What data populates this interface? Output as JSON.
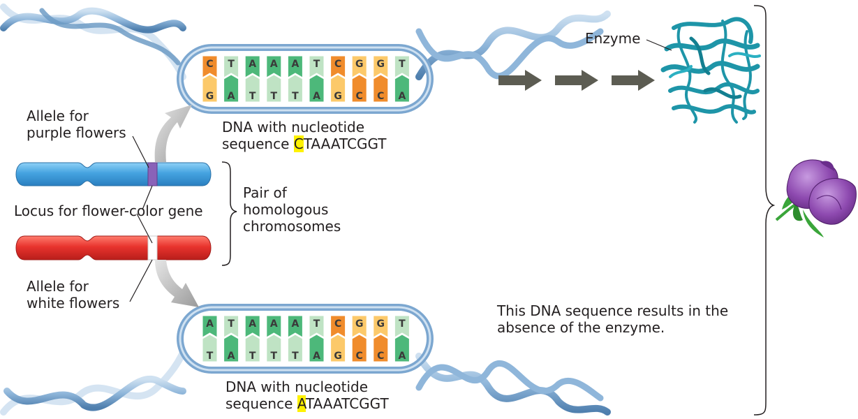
{
  "labels": {
    "enzyme": "Enzyme",
    "top_dna_caption_line1": "DNA with nucleotide",
    "top_dna_caption_line2_prefix": "sequence ",
    "top_sequence_first": "C",
    "top_sequence_rest": "TAAATCGGT",
    "allele_purple_line1": "Allele for",
    "allele_purple_line2": "purple flowers",
    "pair_line1": "Pair of",
    "pair_line2": "homologous",
    "pair_line3": "chromosomes",
    "locus": "Locus for flower-color gene",
    "allele_white_line1": "Allele for",
    "allele_white_line2": "white flowers",
    "result_line1": "This DNA sequence results in the",
    "result_line2": "absence of the enzyme.",
    "bottom_dna_caption_line1": "DNA with nucleotide",
    "bottom_dna_caption_line2_prefix": "sequence ",
    "bottom_sequence_first": "A",
    "bottom_sequence_rest": "TAAATCGGT"
  },
  "dna_top": {
    "upper": [
      "C",
      "T",
      "A",
      "A",
      "A",
      "T",
      "C",
      "G",
      "G",
      "T"
    ],
    "lower": [
      "G",
      "A",
      "T",
      "T",
      "T",
      "A",
      "G",
      "C",
      "C",
      "A"
    ]
  },
  "dna_bottom": {
    "upper": [
      "A",
      "T",
      "A",
      "A",
      "A",
      "T",
      "C",
      "G",
      "G",
      "T"
    ],
    "lower": [
      "T",
      "A",
      "T",
      "T",
      "T",
      "A",
      "G",
      "C",
      "C",
      "A"
    ]
  },
  "colors": {
    "A": "#4db87a",
    "T": "#bfe3c4",
    "C": "#f08c2c",
    "G": "#fcc96a",
    "highlight": "#fff200",
    "helix": "#7ca7d0",
    "chromosome_purple": "#45a3e0",
    "chromosome_white": "#e8332d",
    "band_purple": "#8a62b8",
    "band_white": "#ffffff",
    "enzyme": "#1e95a8",
    "flower": "#8e4ab0",
    "arrows": "#5c5c52"
  },
  "icons": {
    "enzyme": "protein-structure",
    "flower": "purple-flower"
  }
}
